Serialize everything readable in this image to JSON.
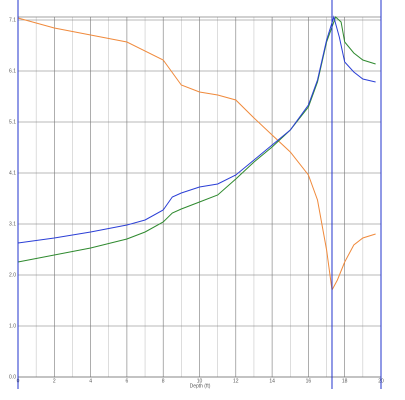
{
  "chart_data": {
    "type": "line",
    "x_label": "Depth (ft)",
    "xlim": [
      0,
      20
    ],
    "xticks": [
      0,
      2,
      4,
      6,
      8,
      10,
      12,
      14,
      16,
      18,
      20
    ],
    "x_minor_ticks": [
      1,
      3,
      5,
      7,
      9,
      11,
      13,
      15,
      17,
      19
    ],
    "ylim": [
      0,
      7.2
    ],
    "yticks": [
      {
        "value": 0,
        "label": "0.0"
      },
      {
        "value": 1.02,
        "label": "1.0"
      },
      {
        "value": 2.04,
        "label": "2.0"
      },
      {
        "value": 3.06,
        "label": "3.1"
      },
      {
        "value": 4.08,
        "label": "4.1"
      },
      {
        "value": 5.1,
        "label": "5.1"
      },
      {
        "value": 6.12,
        "label": "6.1"
      },
      {
        "value": 7.14,
        "label": "7.1"
      }
    ],
    "grid": true,
    "vlines": {
      "color": "#2233cc",
      "x": [
        0,
        17.3,
        20
      ]
    },
    "series": [
      {
        "color": "#f08a3c",
        "x": [
          0,
          2,
          4,
          6,
          8,
          9,
          10,
          11,
          12,
          13,
          14,
          15,
          16,
          16.5,
          17,
          17.3,
          17.6,
          18,
          18.5,
          19,
          19.7
        ],
        "values": [
          7.18,
          6.98,
          6.84,
          6.7,
          6.34,
          5.84,
          5.7,
          5.64,
          5.54,
          5.18,
          4.84,
          4.5,
          4.04,
          3.54,
          2.54,
          1.74,
          1.94,
          2.3,
          2.64,
          2.78,
          2.86
        ]
      },
      {
        "color": "#2f8a2f",
        "x": [
          0,
          2,
          4,
          6,
          7,
          8,
          8.5,
          9,
          10,
          11,
          12,
          13,
          14,
          15,
          16,
          16.5,
          17,
          17.5,
          17.8,
          18,
          18.5,
          19,
          19.7
        ],
        "values": [
          2.3,
          2.44,
          2.58,
          2.76,
          2.9,
          3.1,
          3.28,
          3.36,
          3.5,
          3.64,
          3.96,
          4.3,
          4.6,
          4.94,
          5.4,
          5.9,
          6.7,
          7.2,
          7.1,
          6.7,
          6.48,
          6.34,
          6.26
        ]
      },
      {
        "color": "#2b3fd6",
        "x": [
          0,
          2,
          4,
          6,
          7,
          8,
          8.5,
          9,
          10,
          11,
          12,
          13,
          14,
          15,
          16,
          16.5,
          17,
          17.4,
          17.7,
          18,
          18.5,
          19,
          19.7
        ],
        "values": [
          2.68,
          2.78,
          2.9,
          3.04,
          3.14,
          3.34,
          3.6,
          3.68,
          3.8,
          3.86,
          4.04,
          4.34,
          4.64,
          4.94,
          5.44,
          5.94,
          6.74,
          7.2,
          6.8,
          6.3,
          6.1,
          5.96,
          5.9
        ]
      }
    ]
  }
}
